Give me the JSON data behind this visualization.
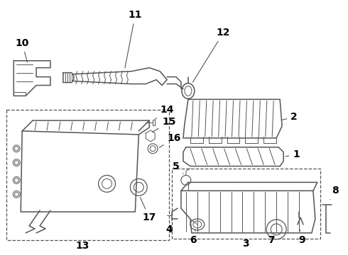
{
  "background_color": "#ffffff",
  "line_color": "#555555",
  "label_color": "#000000",
  "font_size": 10,
  "font_weight": "bold",
  "figsize": [
    4.9,
    3.6
  ],
  "dpi": 100
}
